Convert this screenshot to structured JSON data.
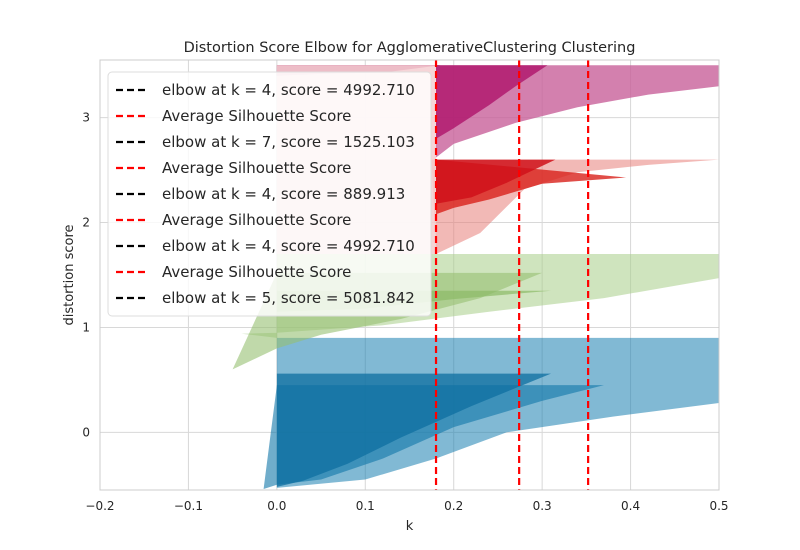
{
  "chart_data": {
    "type": "area",
    "title": "Distortion Score Elbow for AgglomerativeClustering Clustering",
    "xlabel": "k",
    "ylabel": "distortion score",
    "xlim": [
      -0.2,
      0.5
    ],
    "ylim": [
      -0.55,
      3.55
    ],
    "x_ticks": [
      -0.2,
      -0.1,
      0.0,
      0.1,
      0.2,
      0.3,
      0.4,
      0.5
    ],
    "x_tick_labels": [
      "−0.2",
      "−0.1",
      "0.0",
      "0.1",
      "0.2",
      "0.3",
      "0.4",
      "0.5"
    ],
    "y_ticks": [
      0,
      1,
      2,
      3
    ],
    "y_tick_labels": [
      "0",
      "1",
      "2",
      "3"
    ],
    "grid": true,
    "legend_position": "upper-left",
    "legend": [
      {
        "style": "dashed",
        "color": "#000000",
        "label": "elbow at k = 4, score = 4992.710"
      },
      {
        "style": "dashed",
        "color": "#ff0000",
        "label": "Average Silhouette Score"
      },
      {
        "style": "dashed",
        "color": "#000000",
        "label": "elbow at k = 7, score = 1525.103"
      },
      {
        "style": "dashed",
        "color": "#ff0000",
        "label": "Average Silhouette Score"
      },
      {
        "style": "dashed",
        "color": "#000000",
        "label": "elbow at k = 4, score = 889.913"
      },
      {
        "style": "dashed",
        "color": "#ff0000",
        "label": "Average Silhouette Score"
      },
      {
        "style": "dashed",
        "color": "#000000",
        "label": "elbow at k = 4, score = 4992.710"
      },
      {
        "style": "dashed",
        "color": "#ff0000",
        "label": "Average Silhouette Score"
      },
      {
        "style": "dashed",
        "color": "#000000",
        "label": "elbow at k = 5, score = 5081.842"
      }
    ],
    "average_silhouette_lines": [
      0.18,
      0.274,
      0.352
    ],
    "series": [
      {
        "color": "#1f77b4",
        "fill": "#1a7fb0",
        "opacity": 0.55,
        "x": [
          0.5,
          0.5,
          0.38,
          0.26,
          0.18,
          0.1,
          0.0,
          0.0
        ],
        "y": [
          0.9,
          0.28,
          0.15,
          0.0,
          -0.25,
          -0.45,
          -0.53,
          0.9
        ]
      },
      {
        "color": "#1f77b4",
        "fill": "#1077a8",
        "opacity": 0.6,
        "x": [
          0.37,
          0.3,
          0.2,
          0.12,
          0.05,
          0.0,
          -0.015,
          0.0
        ],
        "y": [
          0.45,
          0.3,
          0.05,
          -0.25,
          -0.45,
          -0.5,
          -0.54,
          0.45
        ]
      },
      {
        "color": "#1f77b4",
        "fill": "#0e6fa0",
        "opacity": 0.75,
        "x": [
          0.31,
          0.22,
          0.14,
          0.08,
          0.03,
          0.0,
          0.0
        ],
        "y": [
          0.56,
          0.25,
          -0.05,
          -0.3,
          -0.46,
          -0.52,
          0.56
        ]
      },
      {
        "color": "#8fbc6a",
        "fill": "#a8ce88",
        "opacity": 0.55,
        "x": [
          0.5,
          0.5,
          0.37,
          0.24,
          0.12,
          0.0,
          -0.04,
          0.0,
          0.0
        ],
        "y": [
          1.7,
          1.47,
          1.28,
          1.15,
          1.02,
          0.95,
          0.94,
          0.9,
          1.7
        ]
      },
      {
        "color": "#8fbc6a",
        "fill": "#96c072",
        "opacity": 0.6,
        "x": [
          0.3,
          0.23,
          0.14,
          0.05,
          0.0,
          -0.05,
          0.0
        ],
        "y": [
          1.52,
          1.28,
          1.08,
          0.93,
          0.8,
          0.6,
          1.52
        ]
      },
      {
        "color": "#8fbc6a",
        "fill": "#8cba66",
        "opacity": 0.7,
        "x": [
          0.31,
          0.2,
          0.1,
          0.0,
          0.0
        ],
        "y": [
          1.35,
          1.27,
          1.18,
          1.15,
          1.35
        ]
      },
      {
        "color": "#e24a33",
        "fill": "#e8807a",
        "opacity": 0.55,
        "x": [
          0.5,
          0.42,
          0.34,
          0.28,
          0.23,
          0.18,
          0.175,
          0.18
        ],
        "y": [
          2.6,
          2.55,
          2.48,
          2.32,
          1.9,
          1.7,
          2.6,
          2.6
        ]
      },
      {
        "color": "#e24a33",
        "fill": "#d8201a",
        "opacity": 0.8,
        "x": [
          0.395,
          0.3,
          0.24,
          0.2,
          0.18,
          0.18
        ],
        "y": [
          2.43,
          2.37,
          2.22,
          2.14,
          2.08,
          2.6
        ]
      },
      {
        "color": "#e24a33",
        "fill": "#d0101a",
        "opacity": 0.85,
        "x": [
          0.315,
          0.26,
          0.22,
          0.18,
          0.18
        ],
        "y": [
          2.6,
          2.38,
          2.24,
          2.18,
          2.6
        ]
      },
      {
        "color": "#a8005a",
        "fill": "#c8609a",
        "opacity": 0.8,
        "x": [
          0.5,
          0.5,
          0.42,
          0.34,
          0.27,
          0.2,
          0.18,
          0.18
        ],
        "y": [
          3.5,
          3.3,
          3.22,
          3.1,
          2.95,
          2.75,
          2.62,
          3.5
        ]
      },
      {
        "color": "#a8005a",
        "fill": "#b01a6e",
        "opacity": 0.85,
        "x": [
          0.306,
          0.27,
          0.24,
          0.2,
          0.18,
          0.18
        ],
        "y": [
          3.5,
          3.3,
          3.12,
          2.9,
          2.8,
          3.5
        ]
      },
      {
        "color": "#a8005a",
        "fill": "#a0004e",
        "opacity": 0.95,
        "x": [
          0.185,
          0.12,
          0.06,
          0.0,
          0.0
        ],
        "y": [
          3.5,
          3.43,
          3.42,
          3.4,
          3.5
        ]
      },
      {
        "color": "#f0c0c8",
        "fill": "#f5d0d4",
        "opacity": 0.9,
        "x": [
          0.18,
          0.18,
          0.0,
          0.0
        ],
        "y": [
          3.5,
          2.6,
          2.6,
          3.5
        ]
      },
      {
        "color": "#f0c0c8",
        "fill": "#f2cccc",
        "opacity": 0.85,
        "x": [
          0.18,
          0.18,
          0.0,
          0.0
        ],
        "y": [
          2.6,
          1.7,
          1.7,
          2.6
        ]
      }
    ]
  }
}
